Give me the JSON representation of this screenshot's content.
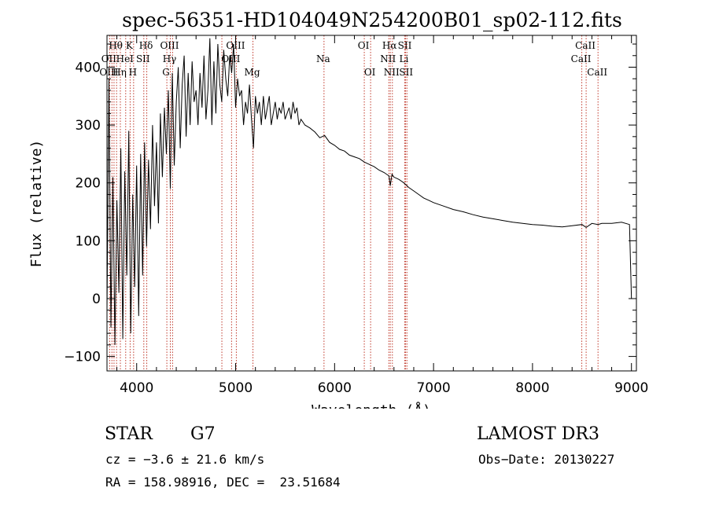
{
  "chart_data": {
    "type": "line",
    "title": "spec-56351-HD104049N254200B01_sp02-112.fits",
    "xlabel": "Wavelength (Å)",
    "ylabel": "Flux (relative)",
    "xlim": [
      3700,
      9050
    ],
    "ylim": [
      -125,
      455
    ],
    "xticks": [
      4000,
      5000,
      6000,
      7000,
      8000,
      9000
    ],
    "yticks": [
      -100,
      0,
      100,
      200,
      300,
      400
    ],
    "series": [
      {
        "name": "flux",
        "x": [
          3700,
          3720,
          3740,
          3760,
          3780,
          3800,
          3820,
          3840,
          3860,
          3880,
          3900,
          3920,
          3940,
          3960,
          3980,
          4000,
          4020,
          4040,
          4060,
          4080,
          4100,
          4120,
          4140,
          4160,
          4180,
          4200,
          4220,
          4240,
          4260,
          4280,
          4300,
          4320,
          4340,
          4360,
          4380,
          4400,
          4420,
          4440,
          4460,
          4480,
          4500,
          4520,
          4540,
          4560,
          4580,
          4600,
          4620,
          4640,
          4660,
          4680,
          4700,
          4720,
          4740,
          4760,
          4780,
          4800,
          4820,
          4840,
          4860,
          4880,
          4900,
          4920,
          4940,
          4960,
          4980,
          5000,
          5020,
          5040,
          5060,
          5080,
          5100,
          5120,
          5140,
          5160,
          5180,
          5200,
          5220,
          5240,
          5260,
          5280,
          5300,
          5320,
          5340,
          5360,
          5380,
          5400,
          5420,
          5440,
          5460,
          5480,
          5500,
          5520,
          5540,
          5560,
          5580,
          5600,
          5620,
          5640,
          5660,
          5680,
          5700,
          5750,
          5800,
          5850,
          5900,
          5950,
          6000,
          6050,
          6100,
          6150,
          6200,
          6250,
          6300,
          6350,
          6400,
          6450,
          6500,
          6550,
          6563,
          6580,
          6600,
          6650,
          6700,
          6750,
          6800,
          6850,
          6900,
          6950,
          7000,
          7100,
          7200,
          7300,
          7400,
          7500,
          7600,
          7700,
          7800,
          7900,
          8000,
          8100,
          8200,
          8300,
          8400,
          8500,
          8542,
          8600,
          8662,
          8700,
          8800,
          8900,
          8980,
          9000
        ],
        "y": [
          -20,
          380,
          -50,
          210,
          -80,
          170,
          10,
          260,
          -70,
          220,
          40,
          290,
          -60,
          180,
          20,
          230,
          -30,
          250,
          40,
          270,
          90,
          240,
          120,
          300,
          160,
          270,
          130,
          320,
          210,
          330,
          250,
          360,
          190,
          390,
          230,
          340,
          400,
          260,
          370,
          420,
          280,
          390,
          300,
          410,
          340,
          360,
          300,
          390,
          330,
          420,
          310,
          360,
          450,
          300,
          410,
          320,
          440,
          370,
          340,
          430,
          380,
          350,
          420,
          390,
          440,
          330,
          380,
          350,
          360,
          300,
          340,
          320,
          370,
          310,
          260,
          350,
          320,
          340,
          300,
          350,
          310,
          330,
          350,
          300,
          320,
          340,
          310,
          330,
          320,
          340,
          310,
          320,
          330,
          310,
          340,
          320,
          330,
          300,
          310,
          305,
          300,
          295,
          288,
          278,
          282,
          270,
          265,
          258,
          255,
          248,
          245,
          242,
          236,
          232,
          228,
          222,
          218,
          212,
          195,
          215,
          210,
          206,
          200,
          192,
          186,
          180,
          174,
          170,
          166,
          160,
          154,
          150,
          145,
          141,
          138,
          135,
          132,
          130,
          128,
          127,
          125,
          124,
          126,
          128,
          123,
          130,
          128,
          130,
          130,
          132,
          128,
          0
        ]
      }
    ],
    "lines": [
      {
        "label": "Hθ",
        "x": 3797,
        "row": 1
      },
      {
        "label": "OII",
        "x": 3727,
        "row": 2
      },
      {
        "label": "OIII",
        "x": 3727,
        "row": 3
      },
      {
        "label": "Hη",
        "x": 3835,
        "row": 3
      },
      {
        "label": "HeI",
        "x": 3889,
        "row": 2
      },
      {
        "label": "K",
        "x": 3934,
        "row": 1
      },
      {
        "label": "H",
        "x": 3969,
        "row": 3
      },
      {
        "label": "SII",
        "x": 4072,
        "row": 2
      },
      {
        "label": "Hδ",
        "x": 4102,
        "row": 1
      },
      {
        "label": "OIII",
        "x": 4340,
        "row": 1
      },
      {
        "label": "Hγ",
        "x": 4340,
        "row": 2
      },
      {
        "label": "G",
        "x": 4305,
        "row": 3
      },
      {
        "label": "OIII",
        "x": 5007,
        "row": 1
      },
      {
        "label": "OIII",
        "x": 4959,
        "row": 2
      },
      {
        "label": "Mg",
        "x": 5175,
        "row": 3
      },
      {
        "label": "Na",
        "x": 5893,
        "row": 2
      },
      {
        "label": "OI",
        "x": 6300,
        "row": 1
      },
      {
        "label": "OI",
        "x": 6364,
        "row": 3
      },
      {
        "label": "Hα",
        "x": 6563,
        "row": 1
      },
      {
        "label": "NII",
        "x": 6548,
        "row": 2
      },
      {
        "label": "NII",
        "x": 6584,
        "row": 3
      },
      {
        "label": "SII",
        "x": 6717,
        "row": 1
      },
      {
        "label": "Li",
        "x": 6708,
        "row": 2
      },
      {
        "label": "SII",
        "x": 6731,
        "row": 3
      },
      {
        "label": "CaII",
        "x": 8542,
        "row": 1
      },
      {
        "label": "CaII",
        "x": 8498,
        "row": 2
      },
      {
        "label": "CaII",
        "x": 8662,
        "row": 3
      }
    ],
    "markers": [
      3727,
      3750,
      3771,
      3797,
      3835,
      3889,
      3934,
      3969,
      4072,
      4102,
      4305,
      4340,
      4363,
      4861,
      4959,
      5007,
      5175,
      5893,
      6300,
      6364,
      6548,
      6563,
      6584,
      6708,
      6717,
      6731,
      8498,
      8542,
      8662
    ]
  },
  "info": {
    "object_class": "STAR",
    "subclass": "G7",
    "survey": "LAMOST DR3",
    "cz": "cz = −3.6 ± 21.6 km/s",
    "obs_date": "Obs−Date: 20130227",
    "coords": "RA = 158.98916, DEC =  23.51684"
  },
  "colors": {
    "line_marker": "#c0392b",
    "spectrum": "#000000"
  }
}
